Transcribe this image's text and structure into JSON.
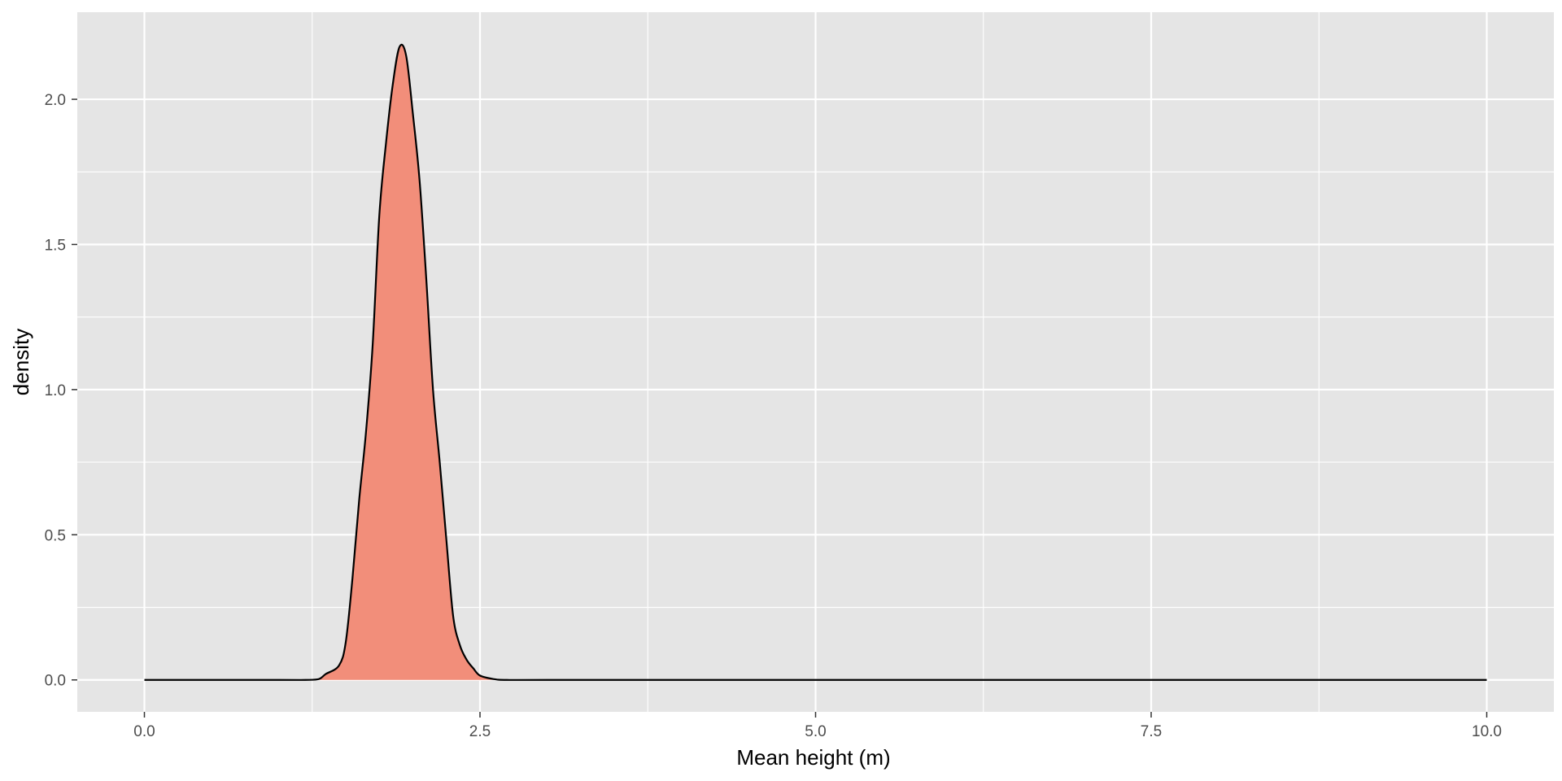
{
  "chart_data": {
    "type": "area",
    "title": "",
    "xlabel": "Mean height (m)",
    "ylabel": "density",
    "xlim": [
      -0.5,
      10.5
    ],
    "ylim": [
      -0.11,
      2.3
    ],
    "x_ticks": [
      0.0,
      2.5,
      5.0,
      7.5,
      10.0
    ],
    "x_tick_labels": [
      "0.0",
      "2.5",
      "5.0",
      "7.5",
      "10.0"
    ],
    "y_ticks": [
      0.0,
      0.5,
      1.0,
      1.5,
      2.0
    ],
    "y_tick_labels": [
      "0.0",
      "0.5",
      "1.0",
      "1.5",
      "2.0"
    ],
    "grid": true,
    "legend": "none",
    "colors": {
      "panel_background": "#e5e5e5",
      "grid": "#ffffff",
      "fill": "#f28e7a",
      "line": "#000000"
    },
    "series": [
      {
        "x": [
          0.0,
          1.0,
          1.2,
          1.3,
          1.35,
          1.45,
          1.5,
          1.55,
          1.6,
          1.65,
          1.7,
          1.75,
          1.8,
          1.85,
          1.9,
          1.95,
          2.0,
          2.05,
          2.1,
          2.15,
          2.2,
          2.25,
          2.3,
          2.35,
          2.4,
          2.45,
          2.5,
          2.6,
          2.7,
          3.0,
          5.0,
          7.5,
          10.0
        ],
        "y": [
          0.0,
          0.0,
          0.0,
          0.003,
          0.02,
          0.05,
          0.13,
          0.35,
          0.62,
          0.85,
          1.15,
          1.6,
          1.85,
          2.05,
          2.18,
          2.15,
          1.95,
          1.72,
          1.38,
          1.0,
          0.75,
          0.48,
          0.22,
          0.12,
          0.07,
          0.04,
          0.015,
          0.003,
          0.0,
          0.0,
          0.0,
          0.0,
          0.0
        ]
      }
    ]
  }
}
